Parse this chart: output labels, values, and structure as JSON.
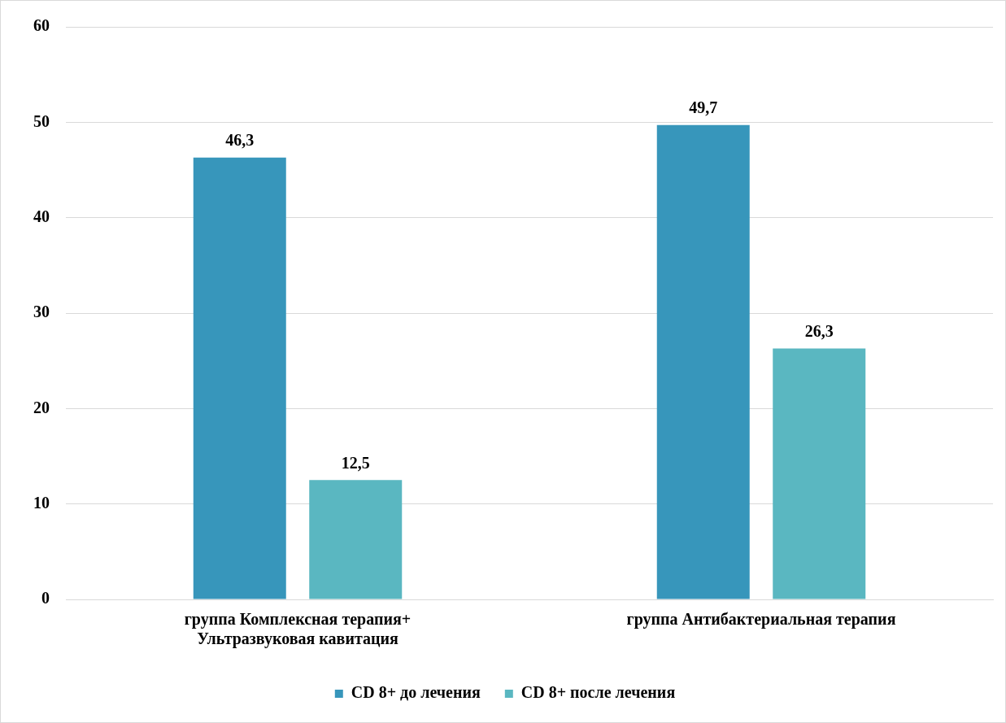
{
  "chart_data": {
    "type": "bar",
    "categories": [
      "группа Комплексная терапия+ Ультразвуковая кавитация",
      "группа Антибактериальная терапия"
    ],
    "series": [
      {
        "name": "CD 8+ до лечения",
        "color": "#3796bb",
        "values": [
          46.3,
          49.7
        ],
        "value_labels": [
          "46,3",
          "49,7"
        ]
      },
      {
        "name": "CD 8+ после лечения",
        "color": "#5ab7c1",
        "values": [
          12.5,
          26.3
        ],
        "value_labels": [
          "12,5",
          "26,3"
        ]
      }
    ],
    "ylim": [
      0,
      60
    ],
    "yticks": [
      0,
      10,
      20,
      30,
      40,
      50,
      60
    ],
    "grid": "y",
    "legend": "bottom"
  }
}
